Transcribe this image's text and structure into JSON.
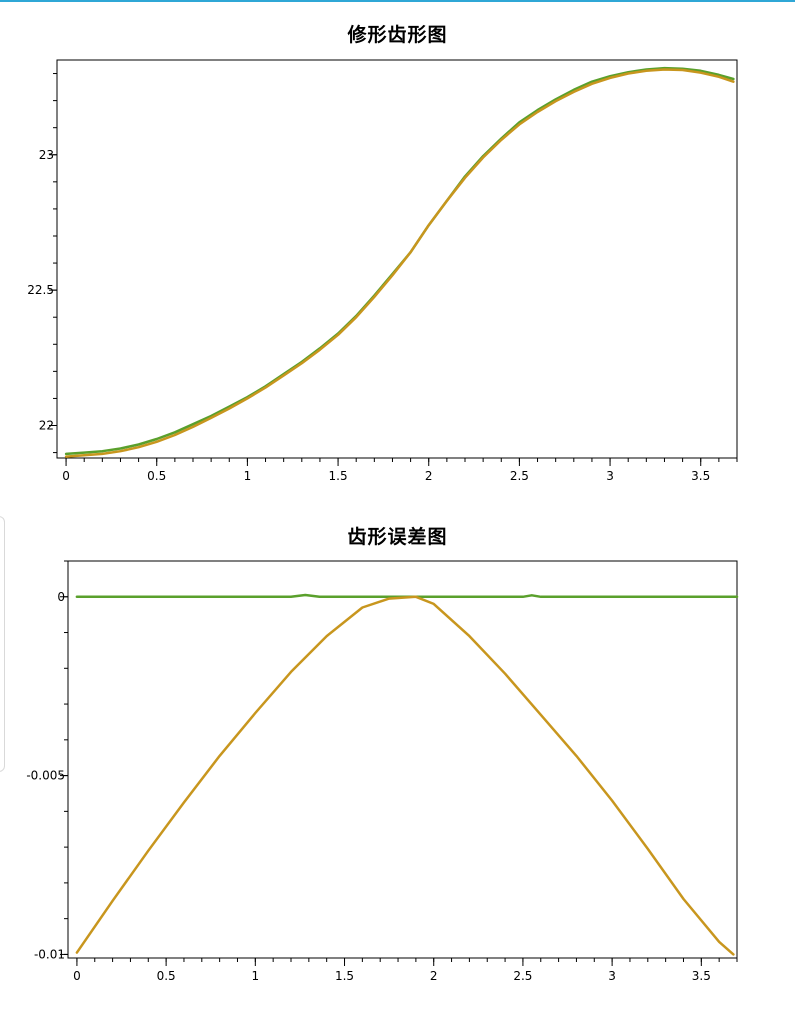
{
  "chart_data": [
    {
      "type": "line",
      "title": "修形齿形图",
      "xlabel": "",
      "ylabel": "",
      "xlim": [
        -0.05,
        3.7
      ],
      "ylim": [
        21.88,
        23.35
      ],
      "xticks": [
        0,
        0.5,
        1,
        1.5,
        2,
        2.5,
        3,
        3.5
      ],
      "xtick_labels": [
        "0",
        "0.5",
        "1",
        "1.5",
        "2",
        "2.5",
        "3",
        "3.5"
      ],
      "yticks": [
        22,
        22.5,
        23
      ],
      "ytick_labels": [
        "22",
        "22.5",
        "23"
      ],
      "grid": false,
      "legend": "none",
      "series": [
        {
          "color": "#5aa02c",
          "x": [
            0,
            0.1,
            0.2,
            0.3,
            0.4,
            0.5,
            0.6,
            0.7,
            0.8,
            0.9,
            1.0,
            1.1,
            1.2,
            1.3,
            1.4,
            1.5,
            1.6,
            1.7,
            1.8,
            1.9,
            2.0,
            2.1,
            2.2,
            2.3,
            2.4,
            2.5,
            2.6,
            2.7,
            2.8,
            2.9,
            3.0,
            3.1,
            3.2,
            3.3,
            3.4,
            3.5,
            3.6,
            3.68
          ],
          "y": [
            21.895,
            21.9,
            21.905,
            21.915,
            21.93,
            21.95,
            21.975,
            22.005,
            22.035,
            22.07,
            22.105,
            22.145,
            22.19,
            22.235,
            22.285,
            22.34,
            22.405,
            22.48,
            22.56,
            22.64,
            22.74,
            22.83,
            22.92,
            22.995,
            23.06,
            23.12,
            23.165,
            23.205,
            23.24,
            23.27,
            23.29,
            23.305,
            23.315,
            23.32,
            23.318,
            23.31,
            23.295,
            23.28
          ]
        },
        {
          "color": "#c8961e",
          "x": [
            0,
            0.1,
            0.2,
            0.3,
            0.4,
            0.5,
            0.6,
            0.7,
            0.8,
            0.9,
            1.0,
            1.1,
            1.2,
            1.3,
            1.4,
            1.5,
            1.6,
            1.7,
            1.8,
            1.9,
            2.0,
            2.1,
            2.2,
            2.3,
            2.4,
            2.5,
            2.6,
            2.7,
            2.8,
            2.9,
            3.0,
            3.1,
            3.2,
            3.3,
            3.4,
            3.5,
            3.6,
            3.68
          ],
          "y": [
            21.885,
            21.89,
            21.895,
            21.905,
            21.92,
            21.94,
            21.965,
            21.995,
            22.028,
            22.063,
            22.1,
            22.14,
            22.185,
            22.23,
            22.28,
            22.335,
            22.4,
            22.475,
            22.555,
            22.64,
            22.74,
            22.83,
            22.915,
            22.99,
            23.055,
            23.112,
            23.158,
            23.198,
            23.232,
            23.262,
            23.284,
            23.3,
            23.31,
            23.315,
            23.313,
            23.303,
            23.288,
            23.27
          ]
        }
      ]
    },
    {
      "type": "line",
      "title": "齿形误差图",
      "xlabel": "",
      "ylabel": "",
      "xlim": [
        -0.05,
        3.7
      ],
      "ylim": [
        -0.0101,
        0.001
      ],
      "xticks": [
        0,
        0.5,
        1,
        1.5,
        2,
        2.5,
        3,
        3.5
      ],
      "xtick_labels": [
        "0",
        "0.5",
        "1",
        "1.5",
        "2",
        "2.5",
        "3",
        "3.5"
      ],
      "yticks": [
        -0.01,
        -0.005,
        0
      ],
      "ytick_labels": [
        "-0.01",
        "-0.005",
        "0"
      ],
      "grid": false,
      "legend": "none",
      "series": [
        {
          "color": "#5aa02c",
          "x": [
            0,
            0.5,
            1.0,
            1.2,
            1.28,
            1.36,
            1.5,
            1.7,
            1.9,
            2.1,
            2.3,
            2.5,
            2.55,
            2.6,
            3.0,
            3.5,
            3.7
          ],
          "y": [
            0,
            0,
            0,
            0,
            5e-05,
            0,
            0,
            0,
            0,
            0,
            0,
            0,
            4e-05,
            0,
            0,
            0,
            0
          ]
        },
        {
          "color": "#c8961e",
          "x": [
            0,
            0.2,
            0.4,
            0.6,
            0.8,
            1.0,
            1.2,
            1.4,
            1.6,
            1.75,
            1.9,
            2.0,
            2.2,
            2.4,
            2.6,
            2.8,
            3.0,
            3.2,
            3.4,
            3.6,
            3.68
          ],
          "y": [
            -0.00995,
            -0.0085,
            -0.0071,
            -0.00575,
            -0.00445,
            -0.00325,
            -0.0021,
            -0.0011,
            -0.0003,
            -5e-05,
            0,
            -0.0002,
            -0.0011,
            -0.00215,
            -0.0033,
            -0.00445,
            -0.0057,
            -0.00705,
            -0.00845,
            -0.00965,
            -0.01
          ]
        }
      ]
    }
  ]
}
